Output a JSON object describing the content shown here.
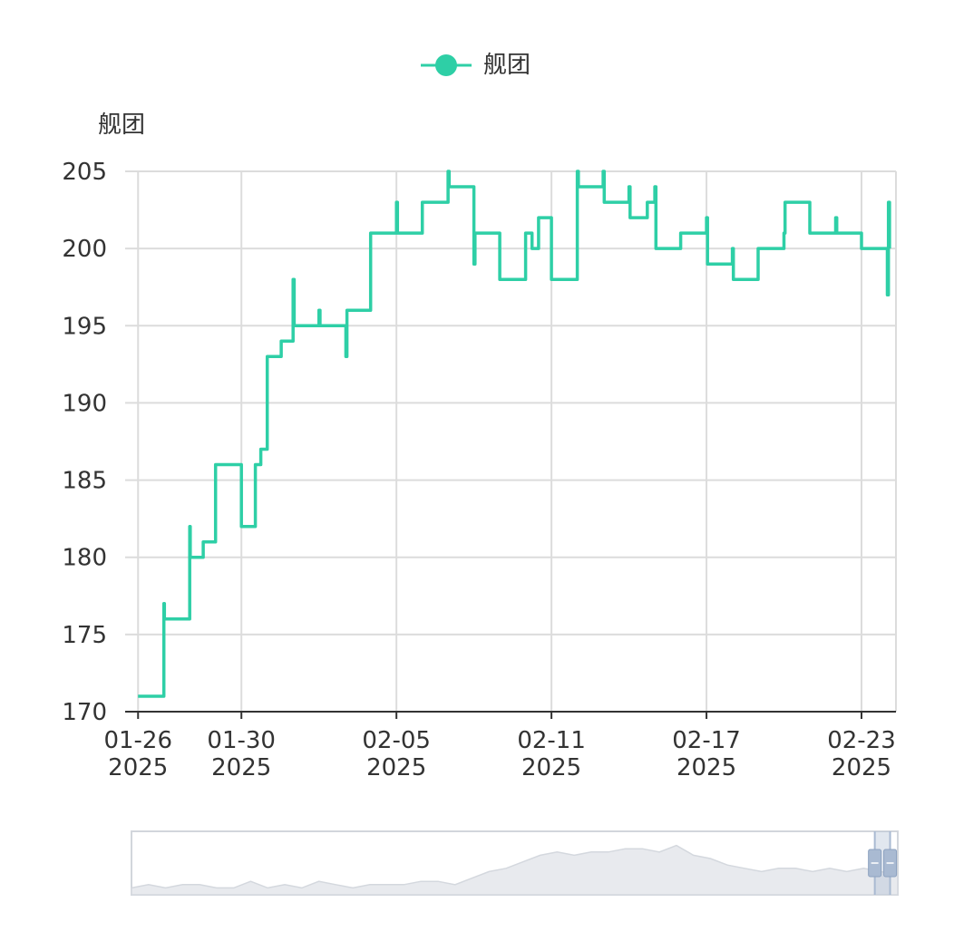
{
  "colors": {
    "series": "#2ecfa6",
    "grid": "#dcdcdc",
    "axis": "#333333",
    "slider_fill": "#e8eaee",
    "slider_border": "#d2d6dc",
    "slider_handle": "#a9bad2"
  },
  "legend": {
    "label": "舰团",
    "icon": "circle-line-icon"
  },
  "chart_data": {
    "type": "line",
    "step": true,
    "title": "",
    "xlabel": "",
    "ylabel": "舰团",
    "ylim": [
      170,
      205
    ],
    "yticks": [
      170,
      175,
      180,
      185,
      190,
      195,
      200,
      205
    ],
    "xlim": [
      "2025-01-25T12:00",
      "2025-02-24T08:00"
    ],
    "xticks": [
      {
        "date": "2025-01-26",
        "label": [
          "01-26",
          "2025"
        ]
      },
      {
        "date": "2025-01-30",
        "label": [
          "01-30",
          "2025"
        ]
      },
      {
        "date": "2025-02-05",
        "label": [
          "02-05",
          "2025"
        ]
      },
      {
        "date": "2025-02-11",
        "label": [
          "02-11",
          "2025"
        ]
      },
      {
        "date": "2025-02-17",
        "label": [
          "02-17",
          "2025"
        ]
      },
      {
        "date": "2025-02-23",
        "label": [
          "02-23",
          "2025"
        ]
      }
    ],
    "grid": true,
    "legend_position": "top-center",
    "series": [
      {
        "name": "舰团",
        "points": [
          [
            "2025-01-26T00:00",
            171
          ],
          [
            "2025-01-26T23:00",
            171
          ],
          [
            "2025-01-27T00:00",
            177
          ],
          [
            "2025-01-27T00:30",
            176
          ],
          [
            "2025-01-27T23:00",
            176
          ],
          [
            "2025-01-28T00:00",
            182
          ],
          [
            "2025-01-28T00:30",
            180
          ],
          [
            "2025-01-28T12:00",
            180
          ],
          [
            "2025-01-28T12:30",
            181
          ],
          [
            "2025-01-28T20:00",
            181
          ],
          [
            "2025-01-29T00:00",
            186
          ],
          [
            "2025-01-29T23:00",
            186
          ],
          [
            "2025-01-30T00:00",
            182
          ],
          [
            "2025-01-30T12:00",
            182
          ],
          [
            "2025-01-30T13:00",
            186
          ],
          [
            "2025-01-30T18:00",
            187
          ],
          [
            "2025-01-31T00:00",
            193
          ],
          [
            "2025-01-31T12:00",
            193
          ],
          [
            "2025-01-31T13:00",
            194
          ],
          [
            "2025-01-31T20:00",
            194
          ],
          [
            "2025-02-01T00:00",
            198
          ],
          [
            "2025-02-01T01:00",
            195
          ],
          [
            "2025-02-01T23:00",
            195
          ],
          [
            "2025-02-02T00:00",
            196
          ],
          [
            "2025-02-02T01:00",
            195
          ],
          [
            "2025-02-03T00:00",
            195
          ],
          [
            "2025-02-03T01:00",
            193
          ],
          [
            "2025-02-03T02:00",
            196
          ],
          [
            "2025-02-03T23:00",
            196
          ],
          [
            "2025-02-04T00:00",
            201
          ],
          [
            "2025-02-04T22:00",
            201
          ],
          [
            "2025-02-05T00:00",
            203
          ],
          [
            "2025-02-05T01:00",
            201
          ],
          [
            "2025-02-05T23:00",
            201
          ],
          [
            "2025-02-06T00:00",
            203
          ],
          [
            "2025-02-06T23:00",
            203
          ],
          [
            "2025-02-07T00:00",
            205
          ],
          [
            "2025-02-07T01:00",
            204
          ],
          [
            "2025-02-07T23:00",
            204
          ],
          [
            "2025-02-08T00:00",
            199
          ],
          [
            "2025-02-08T01:00",
            201
          ],
          [
            "2025-02-08T23:00",
            201
          ],
          [
            "2025-02-09T00:00",
            198
          ],
          [
            "2025-02-09T23:00",
            198
          ],
          [
            "2025-02-10T00:00",
            201
          ],
          [
            "2025-02-10T06:00",
            200
          ],
          [
            "2025-02-10T12:00",
            202
          ],
          [
            "2025-02-10T23:00",
            202
          ],
          [
            "2025-02-11T00:00",
            198
          ],
          [
            "2025-02-11T23:00",
            198
          ],
          [
            "2025-02-12T00:00",
            205
          ],
          [
            "2025-02-12T01:00",
            204
          ],
          [
            "2025-02-12T23:00",
            204
          ],
          [
            "2025-02-13T00:00",
            205
          ],
          [
            "2025-02-13T01:00",
            203
          ],
          [
            "2025-02-13T23:00",
            203
          ],
          [
            "2025-02-14T00:00",
            204
          ],
          [
            "2025-02-14T01:00",
            202
          ],
          [
            "2025-02-14T16:00",
            202
          ],
          [
            "2025-02-14T17:00",
            203
          ],
          [
            "2025-02-14T23:00",
            203
          ],
          [
            "2025-02-15T00:00",
            204
          ],
          [
            "2025-02-15T01:00",
            200
          ],
          [
            "2025-02-15T23:00",
            200
          ],
          [
            "2025-02-16T00:00",
            201
          ],
          [
            "2025-02-16T23:00",
            201
          ],
          [
            "2025-02-17T00:00",
            202
          ],
          [
            "2025-02-17T01:00",
            199
          ],
          [
            "2025-02-17T23:00",
            199
          ],
          [
            "2025-02-18T00:00",
            200
          ],
          [
            "2025-02-18T01:00",
            198
          ],
          [
            "2025-02-18T23:00",
            198
          ],
          [
            "2025-02-19T00:00",
            200
          ],
          [
            "2025-02-19T23:00",
            200
          ],
          [
            "2025-02-20T00:00",
            201
          ],
          [
            "2025-02-20T01:00",
            203
          ],
          [
            "2025-02-20T23:00",
            203
          ],
          [
            "2025-02-21T00:00",
            201
          ],
          [
            "2025-02-21T23:00",
            201
          ],
          [
            "2025-02-22T00:00",
            202
          ],
          [
            "2025-02-22T01:00",
            201
          ],
          [
            "2025-02-22T23:00",
            201
          ],
          [
            "2025-02-23T00:00",
            200
          ],
          [
            "2025-02-23T23:00",
            200
          ],
          [
            "2025-02-24T00:00",
            197
          ],
          [
            "2025-02-24T01:00",
            203
          ],
          [
            "2025-02-24T02:00",
            200
          ]
        ]
      }
    ]
  },
  "datazoom": {
    "range": [
      97,
      99
    ],
    "handle_icon": "drag-handle-icon",
    "overview_values": [
      171,
      172,
      171,
      172,
      172,
      171,
      171,
      173,
      171,
      172,
      171,
      173,
      172,
      171,
      172,
      172,
      172,
      173,
      173,
      172,
      174,
      176,
      177,
      179,
      181,
      182,
      181,
      182,
      182,
      183,
      183,
      182,
      184,
      181,
      180,
      178,
      177,
      176,
      177,
      177,
      176,
      177,
      176,
      177,
      176,
      175
    ]
  }
}
